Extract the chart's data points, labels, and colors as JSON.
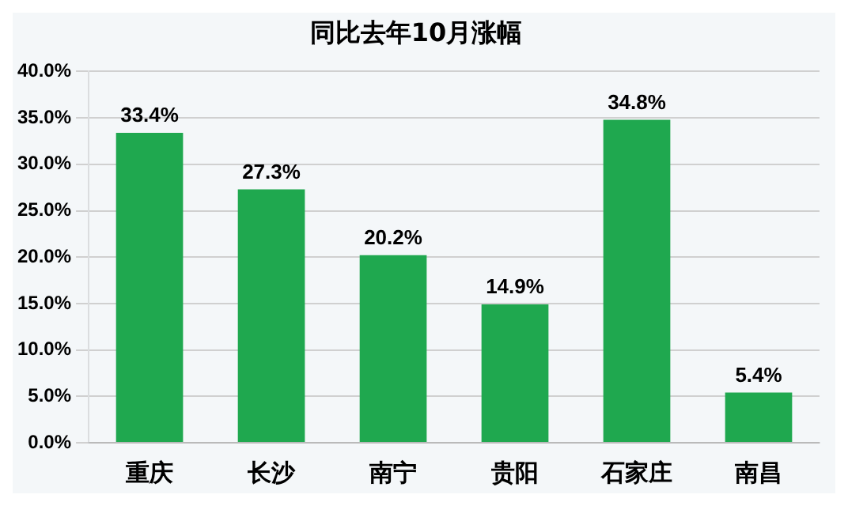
{
  "chart_data": {
    "type": "bar",
    "title": "同比去年10月涨幅",
    "categories": [
      "重庆",
      "长沙",
      "南宁",
      "贵阳",
      "石家庄",
      "南昌"
    ],
    "values": [
      33.4,
      27.3,
      20.2,
      14.9,
      34.8,
      5.4
    ],
    "value_labels": [
      "33.4%",
      "27.3%",
      "20.2%",
      "14.9%",
      "34.8%",
      "5.4%"
    ],
    "color": "#1fa84f",
    "ylim": [
      0,
      40
    ],
    "yticks": [
      {
        "value": 0,
        "label": "0.0%"
      },
      {
        "value": 5,
        "label": "5.0%"
      },
      {
        "value": 10,
        "label": "10.0%"
      },
      {
        "value": 15,
        "label": "15.0%"
      },
      {
        "value": 20,
        "label": "20.0%"
      },
      {
        "value": 25,
        "label": "25.0%"
      },
      {
        "value": 30,
        "label": "30.0%"
      },
      {
        "value": 35,
        "label": "35.0%"
      },
      {
        "value": 40,
        "label": "40.0%"
      }
    ],
    "grid": "y",
    "legend": false
  }
}
